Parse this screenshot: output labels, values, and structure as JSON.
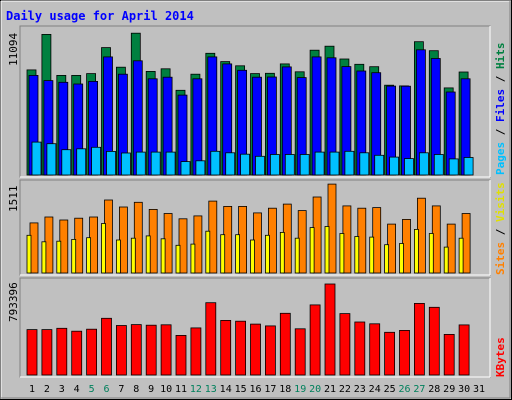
{
  "title": "Daily usage for April 2014",
  "colors": {
    "background": "#c0c0c0",
    "title": "#0000ff",
    "hits": "#008040",
    "files": "#0000ff",
    "pages": "#00c0ff",
    "visits": "#ffff00",
    "sites": "#ff8000",
    "kbytes": "#ff0000",
    "weekend_label": "#00805c",
    "day_label": "#000000"
  },
  "chart_data": [
    {
      "type": "bar",
      "panel": "top",
      "max_label": "11094",
      "ylim": [
        0,
        11094
      ],
      "series": [
        {
          "name": "Hits",
          "values": [
            8150,
            10910,
            7730,
            7730,
            7870,
            9880,
            8360,
            11000,
            8040,
            8240,
            6570,
            7820,
            9440,
            8800,
            8470,
            7870,
            7890,
            8620,
            8010,
            9680,
            9990,
            9000,
            8590,
            8400,
            6970,
            6910,
            10340,
            9640,
            6760,
            7990
          ]
        },
        {
          "name": "Files",
          "values": [
            7730,
            7320,
            7190,
            7060,
            7260,
            9160,
            7820,
            8860,
            7460,
            7590,
            6200,
            7460,
            9160,
            8620,
            8120,
            7590,
            7600,
            8390,
            7560,
            9160,
            9090,
            8410,
            8070,
            7940,
            6900,
            6890,
            9710,
            9040,
            6440,
            7460
          ]
        },
        {
          "name": "Pages",
          "values": [
            2550,
            2430,
            1960,
            2030,
            2150,
            1830,
            1710,
            1780,
            1780,
            1780,
            1040,
            1100,
            1840,
            1720,
            1610,
            1450,
            1590,
            1590,
            1590,
            1780,
            1780,
            1840,
            1720,
            1530,
            1390,
            1270,
            1720,
            1590,
            1250,
            1360
          ]
        }
      ],
      "axis_label": [
        "Pages",
        "Files",
        "Hits"
      ]
    },
    {
      "type": "bar",
      "panel": "middle",
      "max_label": "1511",
      "ylim": [
        0,
        1511
      ],
      "series": [
        {
          "name": "Visits",
          "values": [
            640,
            530,
            540,
            570,
            600,
            840,
            560,
            590,
            630,
            580,
            470,
            490,
            710,
            650,
            650,
            560,
            640,
            690,
            590,
            770,
            790,
            670,
            620,
            610,
            480,
            500,
            740,
            670,
            440,
            590
          ]
        },
        {
          "name": "Sites",
          "values": [
            850,
            950,
            900,
            930,
            950,
            1240,
            1120,
            1200,
            1080,
            1010,
            920,
            970,
            1220,
            1130,
            1130,
            1020,
            1100,
            1170,
            1060,
            1290,
            1510,
            1140,
            1100,
            1110,
            830,
            910,
            1270,
            1140,
            830,
            1010
          ]
        }
      ],
      "axis_label": [
        "Sites",
        "Visits"
      ]
    },
    {
      "type": "bar",
      "panel": "bottom",
      "max_label": "793396",
      "ylim": [
        0,
        793396
      ],
      "series": [
        {
          "name": "KBytes",
          "values": [
            396000,
            396000,
            407000,
            382000,
            399000,
            494000,
            432000,
            439000,
            434000,
            438000,
            345000,
            411000,
            630000,
            476000,
            469000,
            444000,
            428000,
            538000,
            403000,
            611000,
            793396,
            535000,
            462000,
            446000,
            372000,
            389000,
            624000,
            590000,
            354000,
            437000
          ]
        }
      ],
      "axis_label": [
        "KBytes"
      ]
    }
  ],
  "days": [
    "1",
    "2",
    "3",
    "4",
    "5",
    "6",
    "7",
    "8",
    "9",
    "10",
    "11",
    "12",
    "13",
    "14",
    "15",
    "16",
    "17",
    "18",
    "19",
    "20",
    "21",
    "22",
    "23",
    "24",
    "25",
    "26",
    "27",
    "28",
    "29",
    "30",
    "31"
  ],
  "weekend_days": [
    5,
    6,
    12,
    13,
    19,
    20,
    26,
    27
  ]
}
